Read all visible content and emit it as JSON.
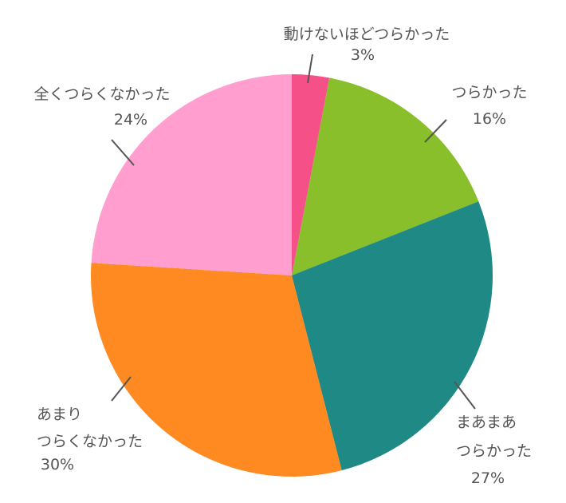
{
  "chart_data": {
    "type": "pie",
    "start_angle_deg": 0,
    "direction": "clockwise",
    "slices": [
      {
        "label": "動けないほどつらかった",
        "value": 3,
        "value_label": "3%",
        "color": "#F55088"
      },
      {
        "label": "つらかった",
        "value": 16,
        "value_label": "16%",
        "color": "#89BF2B"
      },
      {
        "label": "まあまあ つらかった",
        "value": 27,
        "value_label": "27%",
        "color": "#1E8985"
      },
      {
        "label": "あまり つらくなかった",
        "value": 30,
        "value_label": "30%",
        "color": "#FF8A22"
      },
      {
        "label": "全くつらくなかった",
        "value": 24,
        "value_label": "24%",
        "color": "#FF9ECF"
      }
    ]
  }
}
